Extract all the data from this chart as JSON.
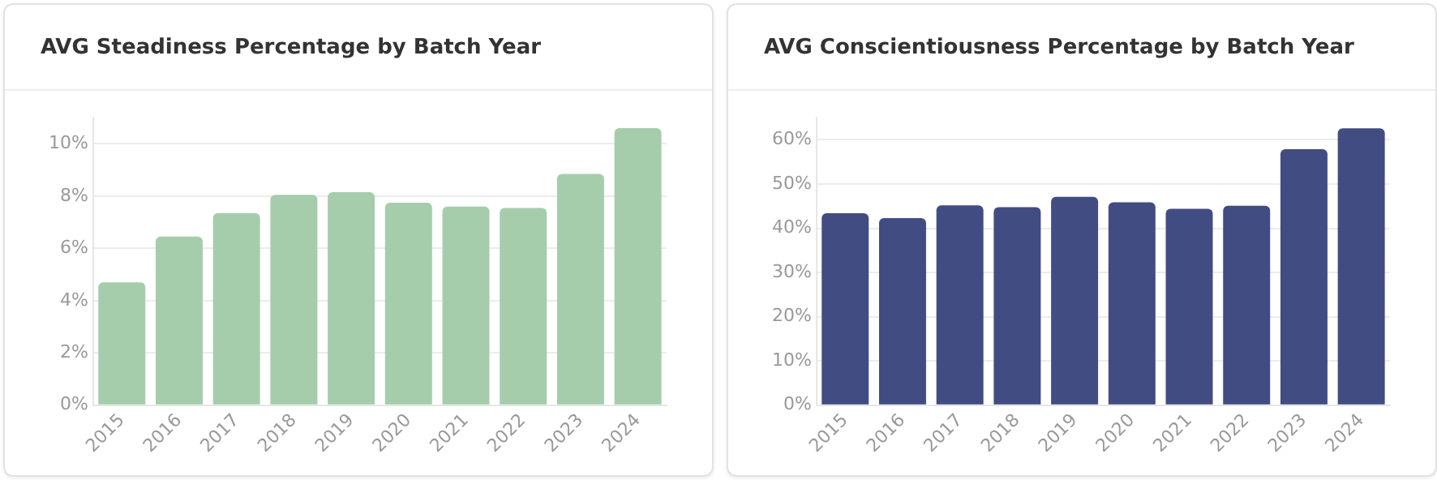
{
  "chart_data": [
    {
      "type": "bar",
      "title": "AVG Steadiness Percentage by Batch Year",
      "categories": [
        "2015",
        "2016",
        "2017",
        "2018",
        "2019",
        "2020",
        "2021",
        "2022",
        "2023",
        "2024"
      ],
      "values": [
        4.7,
        6.45,
        7.35,
        8.05,
        8.15,
        7.75,
        7.6,
        7.55,
        8.85,
        10.6
      ],
      "color": "#a5cdab",
      "ylim": [
        0,
        11
      ],
      "yticks": [
        {
          "value": 0,
          "label": "0%"
        },
        {
          "value": 2,
          "label": "2%"
        },
        {
          "value": 4,
          "label": "4%"
        },
        {
          "value": 6,
          "label": "6%"
        },
        {
          "value": 8,
          "label": "8%"
        },
        {
          "value": 10,
          "label": "10%"
        }
      ],
      "grid": "y",
      "legend": false
    },
    {
      "type": "bar",
      "title": "AVG Conscientiousness Percentage by Batch Year",
      "categories": [
        "2015",
        "2016",
        "2017",
        "2018",
        "2019",
        "2020",
        "2021",
        "2022",
        "2023",
        "2024"
      ],
      "values": [
        43.4,
        42.3,
        45.2,
        44.8,
        47.1,
        45.9,
        44.4,
        45.1,
        57.9,
        62.6
      ],
      "color": "#414c83",
      "ylim": [
        0,
        65
      ],
      "yticks": [
        {
          "value": 0,
          "label": "0%"
        },
        {
          "value": 10,
          "label": "10%"
        },
        {
          "value": 20,
          "label": "20%"
        },
        {
          "value": 30,
          "label": "30%"
        },
        {
          "value": 40,
          "label": "40%"
        },
        {
          "value": 50,
          "label": "50%"
        },
        {
          "value": 60,
          "label": "60%"
        }
      ],
      "grid": "y",
      "legend": false
    }
  ]
}
